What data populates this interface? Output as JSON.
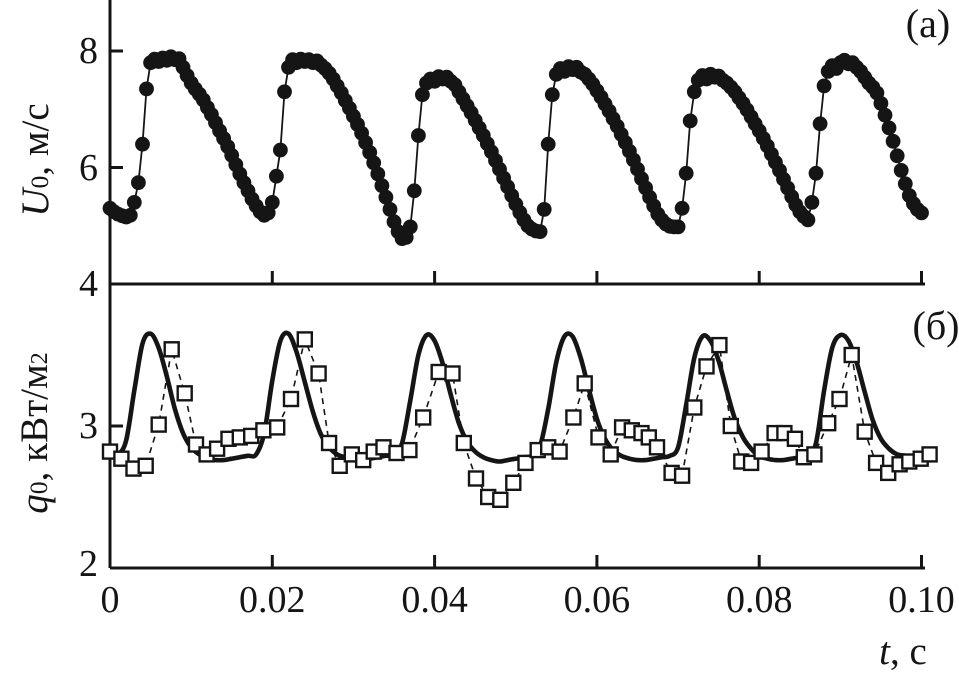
{
  "figure": {
    "panel_a_label": "(a)",
    "panel_b_label": "(б)",
    "x_axis": {
      "label_var": "t",
      "label_unit": ", с",
      "tick_values": [
        0,
        0.02,
        0.04,
        0.06,
        0.08,
        0.1
      ],
      "tick_labels": [
        "0",
        "0.02",
        "0.04",
        "0.06",
        "0.08",
        "0.10"
      ]
    },
    "panel_a": {
      "ylabel_var": "U",
      "ylabel_sub": "0",
      "ylabel_unit": ", м/с",
      "ytick_values": [
        4,
        6,
        8
      ],
      "ytick_labels": [
        "4",
        "6",
        "8"
      ]
    },
    "panel_b": {
      "ylabel_var": "q",
      "ylabel_sub": "0",
      "ylabel_unit": ", кВт/м",
      "ylabel_unit_sup": "2",
      "ytick_values": [
        2,
        3
      ],
      "ytick_labels": [
        "2",
        "3"
      ]
    },
    "colors": {
      "ink": "#151515",
      "background": "#ffffff"
    }
  },
  "chart_data": [
    {
      "panel": "(a)",
      "type": "scatter",
      "title": "",
      "xlabel": "t, с",
      "ylabel": "U0, м/с",
      "xlim": [
        0,
        0.1
      ],
      "ylim": [
        4,
        8.87
      ],
      "yticks": [
        4,
        6,
        8
      ],
      "xticks": [
        0,
        0.02,
        0.04,
        0.06,
        0.08,
        0.1
      ],
      "grid": false,
      "legend": "none",
      "series": [
        {
          "name": "U0 velocity, filled circles",
          "marker": "filled-circle",
          "t_start_s": 0,
          "t_step_s": 0.0005,
          "values": [
            5.3,
            5.24,
            5.2,
            5.17,
            5.15,
            5.18,
            5.4,
            5.74,
            6.4,
            7.35,
            7.8,
            7.86,
            7.82,
            7.88,
            7.84,
            7.9,
            7.85,
            7.87,
            7.72,
            7.58,
            7.45,
            7.35,
            7.26,
            7.16,
            7.03,
            6.91,
            6.77,
            6.63,
            6.5,
            6.36,
            6.21,
            6.05,
            5.89,
            5.74,
            5.6,
            5.46,
            5.34,
            5.24,
            5.18,
            5.22,
            5.4,
            5.85,
            6.3,
            7.3,
            7.72,
            7.85,
            7.8,
            7.86,
            7.82,
            7.85,
            7.8,
            7.83,
            7.76,
            7.7,
            7.62,
            7.52,
            7.4,
            7.28,
            7.15,
            7.02,
            6.88,
            6.74,
            6.59,
            6.43,
            6.26,
            6.08,
            5.89,
            5.69,
            5.49,
            5.28,
            5.07,
            4.9,
            4.78,
            4.8,
            4.98,
            5.6,
            6.55,
            7.25,
            7.45,
            7.52,
            7.48,
            7.56,
            7.52,
            7.55,
            7.48,
            7.42,
            7.3,
            7.18,
            7.06,
            6.94,
            6.81,
            6.68,
            6.55,
            6.41,
            6.27,
            6.12,
            5.97,
            5.82,
            5.67,
            5.52,
            5.37,
            5.23,
            5.1,
            5.0,
            4.94,
            4.91,
            4.9,
            5.28,
            6.4,
            7.25,
            7.6,
            7.7,
            7.65,
            7.73,
            7.68,
            7.72,
            7.64,
            7.6,
            7.52,
            7.43,
            7.32,
            7.21,
            7.09,
            6.97,
            6.84,
            6.71,
            6.57,
            6.43,
            6.28,
            6.13,
            5.97,
            5.81,
            5.65,
            5.49,
            5.34,
            5.2,
            5.1,
            5.03,
            4.99,
            4.98,
            4.98,
            5.3,
            5.9,
            6.8,
            7.3,
            7.5,
            7.58,
            7.52,
            7.6,
            7.55,
            7.57,
            7.5,
            7.45,
            7.38,
            7.3,
            7.2,
            7.1,
            6.99,
            6.87,
            6.75,
            6.63,
            6.5,
            6.37,
            6.23,
            6.09,
            5.95,
            5.8,
            5.65,
            5.5,
            5.36,
            5.24,
            5.16,
            5.1,
            5.4,
            5.9,
            6.75,
            7.4,
            7.65,
            7.75,
            7.7,
            7.8,
            7.84,
            7.78,
            7.8,
            7.72,
            7.65,
            7.55,
            7.45,
            7.38,
            7.28,
            7.1,
            6.9,
            6.68,
            6.45,
            6.2,
            5.95,
            5.72,
            5.52,
            5.38,
            5.28,
            5.22
          ]
        }
      ]
    },
    {
      "panel": "(б)",
      "type": "line+scatter",
      "title": "",
      "xlabel": "t, с",
      "ylabel": "q0, кВт/м2",
      "xlim": [
        0,
        0.1
      ],
      "ylim": [
        2,
        4
      ],
      "yticks": [
        2,
        3,
        4
      ],
      "xticks": [
        0,
        0.02,
        0.04,
        0.06,
        0.08,
        0.1
      ],
      "grid": false,
      "legend": "none",
      "series": [
        {
          "name": "q0 model, solid line",
          "style": "solid-line",
          "t_start_s": 0,
          "t_step_s": 0.001,
          "values": [
            2.8,
            2.8,
            2.9,
            3.25,
            3.58,
            3.65,
            3.55,
            3.35,
            3.12,
            2.95,
            2.85,
            2.8,
            2.77,
            2.76,
            2.76,
            2.77,
            2.78,
            2.79,
            2.8,
            2.95,
            3.32,
            3.6,
            3.65,
            3.52,
            3.31,
            3.1,
            2.94,
            2.85,
            2.8,
            2.78,
            2.77,
            2.76,
            2.77,
            2.78,
            2.79,
            2.8,
            2.88,
            3.18,
            3.5,
            3.64,
            3.6,
            3.44,
            3.22,
            3.02,
            2.89,
            2.82,
            2.78,
            2.76,
            2.75,
            2.76,
            2.77,
            2.78,
            2.79,
            2.86,
            3.12,
            3.45,
            3.63,
            3.63,
            3.48,
            3.26,
            3.05,
            2.91,
            2.83,
            2.79,
            2.77,
            2.76,
            2.76,
            2.77,
            2.78,
            2.79,
            2.85,
            3.15,
            3.48,
            3.63,
            3.6,
            3.46,
            3.25,
            3.05,
            2.92,
            2.84,
            2.79,
            2.77,
            2.76,
            2.76,
            2.77,
            2.78,
            2.79,
            2.88,
            3.25,
            3.55,
            3.64,
            3.6,
            3.45,
            3.24,
            3.04,
            2.91,
            2.84,
            2.8,
            2.79,
            2.78,
            2.78
          ]
        },
        {
          "name": "q0 experiment, open squares",
          "marker": "open-square",
          "style": "dashed-connector",
          "points": [
            [
              0.0,
              2.82
            ],
            [
              0.0014,
              2.77
            ],
            [
              0.0029,
              2.7
            ],
            [
              0.0044,
              2.72
            ],
            [
              0.006,
              3.01
            ],
            [
              0.0076,
              3.54
            ],
            [
              0.0092,
              3.23
            ],
            [
              0.0106,
              2.87
            ],
            [
              0.0119,
              2.8
            ],
            [
              0.0132,
              2.84
            ],
            [
              0.0146,
              2.91
            ],
            [
              0.016,
              2.92
            ],
            [
              0.0174,
              2.93
            ],
            [
              0.0189,
              2.97
            ],
            [
              0.0206,
              2.99
            ],
            [
              0.0223,
              3.19
            ],
            [
              0.024,
              3.61
            ],
            [
              0.0257,
              3.37
            ],
            [
              0.027,
              2.88
            ],
            [
              0.0283,
              2.72
            ],
            [
              0.0298,
              2.8
            ],
            [
              0.0312,
              2.76
            ],
            [
              0.0325,
              2.82
            ],
            [
              0.0337,
              2.85
            ],
            [
              0.0353,
              2.81
            ],
            [
              0.0369,
              2.83
            ],
            [
              0.0386,
              3.06
            ],
            [
              0.0405,
              3.38
            ],
            [
              0.0422,
              3.37
            ],
            [
              0.0436,
              2.88
            ],
            [
              0.0451,
              2.63
            ],
            [
              0.0466,
              2.5
            ],
            [
              0.0481,
              2.48
            ],
            [
              0.0497,
              2.6
            ],
            [
              0.0512,
              2.74
            ],
            [
              0.0527,
              2.83
            ],
            [
              0.054,
              2.85
            ],
            [
              0.0554,
              2.82
            ],
            [
              0.0571,
              3.06
            ],
            [
              0.0585,
              3.3
            ],
            [
              0.0602,
              2.92
            ],
            [
              0.0617,
              2.8
            ],
            [
              0.0631,
              2.99
            ],
            [
              0.0643,
              2.97
            ],
            [
              0.0655,
              2.95
            ],
            [
              0.0664,
              2.92
            ],
            [
              0.0674,
              2.85
            ],
            [
              0.0692,
              2.67
            ],
            [
              0.0705,
              2.65
            ],
            [
              0.072,
              3.13
            ],
            [
              0.0735,
              3.42
            ],
            [
              0.0751,
              3.57
            ],
            [
              0.0765,
              3.0
            ],
            [
              0.0778,
              2.75
            ],
            [
              0.079,
              2.74
            ],
            [
              0.0803,
              2.82
            ],
            [
              0.0819,
              2.95
            ],
            [
              0.0831,
              2.95
            ],
            [
              0.0844,
              2.91
            ],
            [
              0.0855,
              2.78
            ],
            [
              0.0868,
              2.8
            ],
            [
              0.0885,
              3.02
            ],
            [
              0.0899,
              3.19
            ],
            [
              0.0914,
              3.5
            ],
            [
              0.093,
              2.96
            ],
            [
              0.0944,
              2.74
            ],
            [
              0.0959,
              2.67
            ],
            [
              0.0973,
              2.73
            ],
            [
              0.0985,
              2.75
            ],
            [
              0.0999,
              2.77
            ],
            [
              0.101,
              2.8
            ]
          ]
        }
      ]
    }
  ]
}
